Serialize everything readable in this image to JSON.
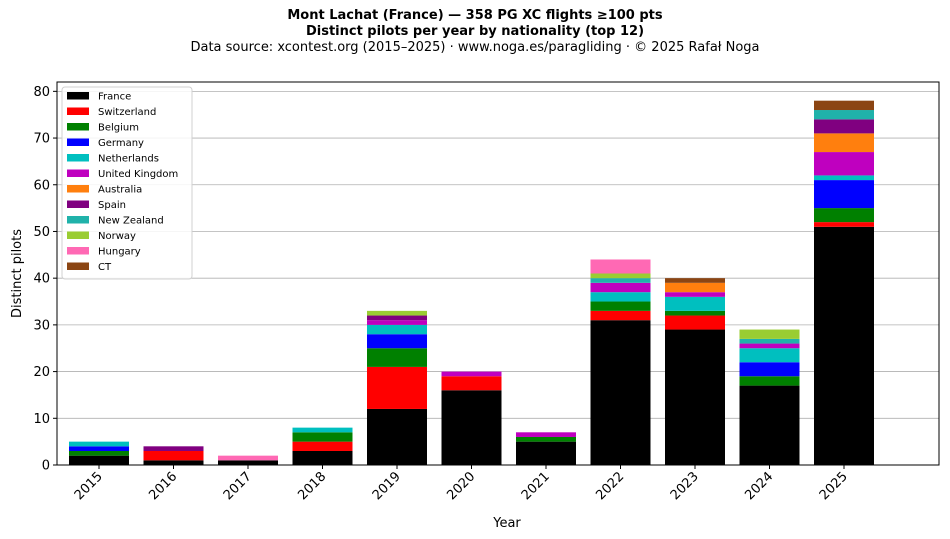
{
  "page": {
    "title_line1": "Mont Lachat (France)  —  358 PG XC flights ≥100 pts",
    "title_line2": "Distinct pilots per year by nationality (top 12)",
    "subtitle": "Data source: xcontest.org (2015–2025)  ·  www.noga.es/paragliding  ·  © 2025 Rafał Noga"
  },
  "chart_data": {
    "type": "bar",
    "stacked": true,
    "xlabel": "Year",
    "ylabel": "Distinct pilots",
    "ylim": [
      0,
      82
    ],
    "yticks": [
      0,
      10,
      20,
      30,
      40,
      50,
      60,
      70,
      80
    ],
    "grid": "horizontal",
    "legend_position": "top-left",
    "categories": [
      "2015",
      "2016",
      "2017",
      "2018",
      "2019",
      "2020",
      "2021",
      "2022",
      "2023",
      "2024",
      "2025"
    ],
    "series": [
      {
        "name": "France",
        "color": "#000000",
        "values": [
          2,
          1,
          1,
          3,
          12,
          16,
          5,
          31,
          29,
          17,
          51
        ]
      },
      {
        "name": "Switzerland",
        "color": "#ff0000",
        "values": [
          0,
          2,
          0,
          2,
          9,
          3,
          0,
          2,
          3,
          0,
          1
        ]
      },
      {
        "name": "Belgium",
        "color": "#008000",
        "values": [
          1,
          0,
          0,
          2,
          4,
          0,
          1,
          2,
          1,
          2,
          3
        ]
      },
      {
        "name": "Germany",
        "color": "#0000ff",
        "values": [
          1,
          0,
          0,
          0,
          3,
          0,
          0,
          0,
          0,
          3,
          6
        ]
      },
      {
        "name": "Netherlands",
        "color": "#00bfbf",
        "values": [
          1,
          0,
          0,
          1,
          2,
          0,
          0,
          2,
          3,
          3,
          1
        ]
      },
      {
        "name": "United Kingdom",
        "color": "#bf00bf",
        "values": [
          0,
          0,
          0,
          0,
          1,
          1,
          1,
          2,
          1,
          1,
          5
        ]
      },
      {
        "name": "Australia",
        "color": "#ff7f0e",
        "values": [
          0,
          0,
          0,
          0,
          0,
          0,
          0,
          0,
          2,
          0,
          4
        ]
      },
      {
        "name": "Spain",
        "color": "#800080",
        "values": [
          0,
          1,
          0,
          0,
          1,
          0,
          0,
          0,
          0,
          0,
          3
        ]
      },
      {
        "name": "New Zealand",
        "color": "#20b2aa",
        "values": [
          0,
          0,
          0,
          0,
          0,
          0,
          0,
          1,
          0,
          1,
          2
        ]
      },
      {
        "name": "Norway",
        "color": "#9acd32",
        "values": [
          0,
          0,
          0,
          0,
          1,
          0,
          0,
          1,
          0,
          2,
          0
        ]
      },
      {
        "name": "Hungary",
        "color": "#ff69b4",
        "values": [
          0,
          0,
          1,
          0,
          0,
          0,
          0,
          3,
          0,
          0,
          0
        ]
      },
      {
        "name": "CT",
        "color": "#8b4513",
        "values": [
          0,
          0,
          0,
          0,
          0,
          0,
          0,
          0,
          1,
          0,
          2
        ]
      }
    ]
  }
}
